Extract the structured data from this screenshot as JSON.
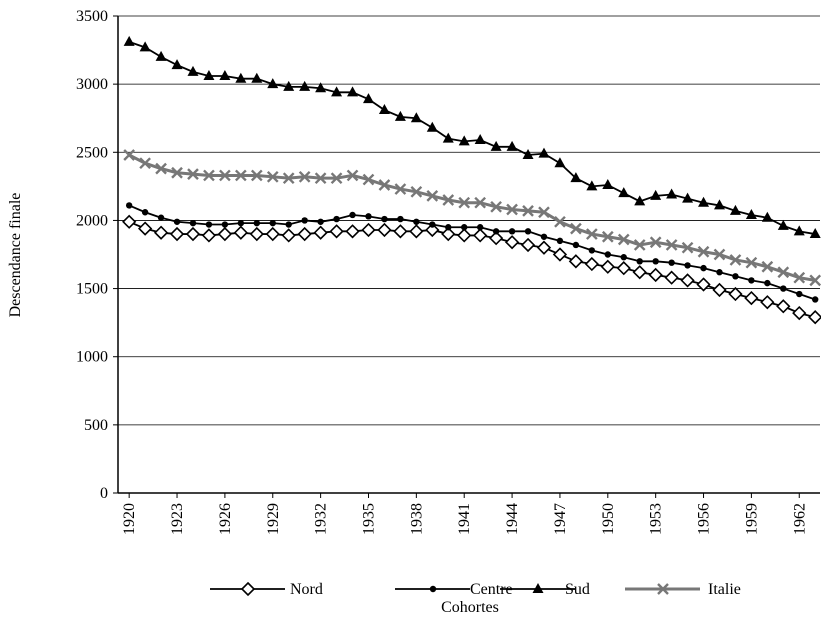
{
  "chart_data": {
    "type": "line",
    "y_label": "Descendance finale",
    "x_label": "Cohortes",
    "x": [
      1920,
      1921,
      1922,
      1923,
      1924,
      1925,
      1926,
      1927,
      1928,
      1929,
      1930,
      1931,
      1932,
      1933,
      1934,
      1935,
      1936,
      1937,
      1938,
      1939,
      1940,
      1941,
      1942,
      1943,
      1944,
      1945,
      1946,
      1947,
      1948,
      1949,
      1950,
      1951,
      1952,
      1953,
      1954,
      1955,
      1956,
      1957,
      1958,
      1959,
      1960,
      1961,
      1962,
      1963
    ],
    "series": [
      {
        "name": "Nord",
        "color": "#000000",
        "marker": "diamond",
        "values": [
          1990,
          1940,
          1910,
          1900,
          1900,
          1890,
          1900,
          1910,
          1900,
          1900,
          1890,
          1900,
          1910,
          1920,
          1920,
          1930,
          1930,
          1920,
          1920,
          1930,
          1900,
          1890,
          1890,
          1870,
          1840,
          1820,
          1800,
          1750,
          1700,
          1680,
          1660,
          1650,
          1620,
          1600,
          1580,
          1560,
          1530,
          1490,
          1460,
          1430,
          1400,
          1370,
          1320,
          1290
        ]
      },
      {
        "name": "Centre",
        "color": "#000000",
        "marker": "circle",
        "values": [
          2110,
          2060,
          2020,
          1990,
          1980,
          1970,
          1970,
          1980,
          1980,
          1980,
          1970,
          2000,
          1990,
          2010,
          2040,
          2030,
          2010,
          2010,
          1990,
          1970,
          1950,
          1950,
          1950,
          1920,
          1920,
          1920,
          1880,
          1850,
          1820,
          1780,
          1750,
          1730,
          1700,
          1700,
          1690,
          1670,
          1650,
          1620,
          1590,
          1560,
          1540,
          1500,
          1460,
          1420
        ]
      },
      {
        "name": "Sud",
        "color": "#000000",
        "marker": "triangle",
        "values": [
          3310,
          3270,
          3200,
          3140,
          3090,
          3060,
          3060,
          3040,
          3040,
          3000,
          2980,
          2980,
          2970,
          2940,
          2940,
          2890,
          2810,
          2760,
          2750,
          2680,
          2600,
          2580,
          2590,
          2540,
          2540,
          2480,
          2490,
          2420,
          2310,
          2250,
          2260,
          2200,
          2140,
          2180,
          2190,
          2160,
          2130,
          2110,
          2070,
          2040,
          2020,
          1960,
          1920,
          1900
        ]
      },
      {
        "name": "Italie",
        "color": "#777777",
        "marker": "x",
        "values": [
          2480,
          2420,
          2380,
          2350,
          2340,
          2330,
          2330,
          2330,
          2330,
          2320,
          2310,
          2320,
          2310,
          2310,
          2330,
          2300,
          2260,
          2230,
          2210,
          2180,
          2150,
          2130,
          2130,
          2100,
          2080,
          2070,
          2060,
          1990,
          1940,
          1900,
          1880,
          1860,
          1820,
          1840,
          1820,
          1800,
          1770,
          1750,
          1710,
          1690,
          1660,
          1620,
          1580,
          1560
        ]
      }
    ],
    "xlim": [
      1919.3,
      1963.3
    ],
    "xticks": [
      1920,
      1923,
      1926,
      1929,
      1932,
      1935,
      1938,
      1941,
      1944,
      1947,
      1950,
      1953,
      1956,
      1959,
      1962
    ],
    "ylim": [
      0,
      3500
    ],
    "yticks": [
      0,
      500,
      1000,
      1500,
      2000,
      2500,
      3000,
      3500
    ],
    "grid": true
  }
}
